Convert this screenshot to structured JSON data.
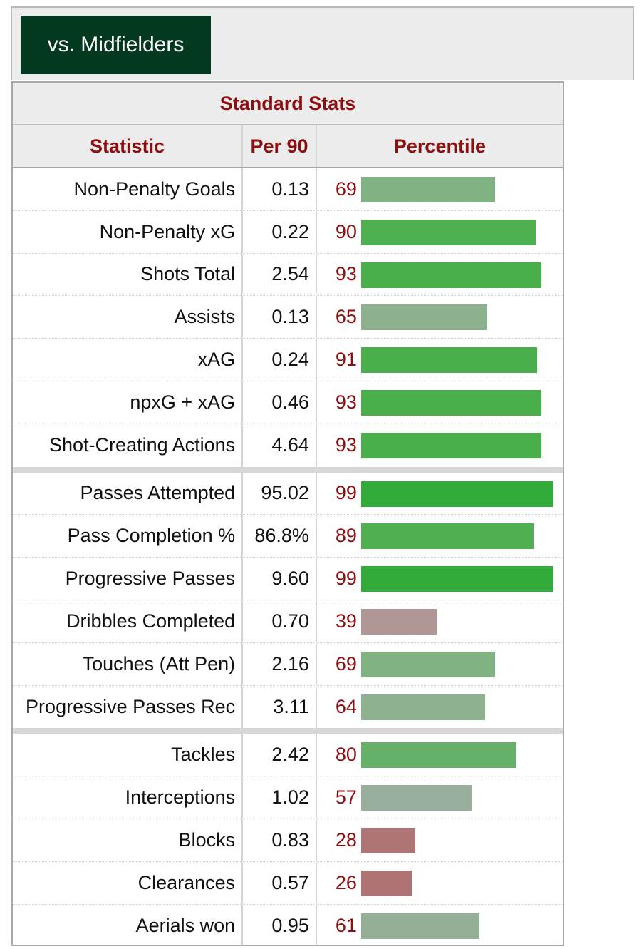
{
  "tab": {
    "label": "vs. Midfielders"
  },
  "table": {
    "title": "Standard Stats",
    "headers": {
      "statistic": "Statistic",
      "per90": "Per 90",
      "percentile": "Percentile"
    }
  },
  "groups": [
    [
      {
        "stat": "Non-Penalty Goals",
        "per90": "0.13",
        "percentile": 69,
        "color": "#80b283"
      },
      {
        "stat": "Non-Penalty xG",
        "per90": "0.22",
        "percentile": 90,
        "color": "#4daf4f"
      },
      {
        "stat": "Shots Total",
        "per90": "2.54",
        "percentile": 93,
        "color": "#4aae4b"
      },
      {
        "stat": "Assists",
        "per90": "0.13",
        "percentile": 65,
        "color": "#8db18f"
      },
      {
        "stat": "xAG",
        "per90": "0.24",
        "percentile": 91,
        "color": "#4aae4b"
      },
      {
        "stat": "npxG + xAG",
        "per90": "0.46",
        "percentile": 93,
        "color": "#4aae4b"
      },
      {
        "stat": "Shot-Creating Actions",
        "per90": "4.64",
        "percentile": 93,
        "color": "#4aae4b"
      }
    ],
    [
      {
        "stat": "Passes Attempted",
        "per90": "95.02",
        "percentile": 99,
        "color": "#33ab3a"
      },
      {
        "stat": "Pass Completion %",
        "per90": "86.8%",
        "percentile": 89,
        "color": "#4faf51"
      },
      {
        "stat": "Progressive Passes",
        "per90": "9.60",
        "percentile": 99,
        "color": "#33ab3a"
      },
      {
        "stat": "Dribbles Completed",
        "per90": "0.70",
        "percentile": 39,
        "color": "#b09695"
      },
      {
        "stat": "Touches (Att Pen)",
        "per90": "2.16",
        "percentile": 69,
        "color": "#80b283"
      },
      {
        "stat": "Progressive Passes Rec",
        "per90": "3.11",
        "percentile": 64,
        "color": "#8eb190"
      }
    ],
    [
      {
        "stat": "Tackles",
        "per90": "2.42",
        "percentile": 80,
        "color": "#66b068"
      },
      {
        "stat": "Interceptions",
        "per90": "1.02",
        "percentile": 57,
        "color": "#9aaf9b"
      },
      {
        "stat": "Blocks",
        "per90": "0.83",
        "percentile": 28,
        "color": "#ae7574"
      },
      {
        "stat": "Clearances",
        "per90": "0.57",
        "percentile": 26,
        "color": "#ae7372"
      },
      {
        "stat": "Aerials won",
        "per90": "0.95",
        "percentile": 61,
        "color": "#94af95"
      }
    ]
  ]
}
